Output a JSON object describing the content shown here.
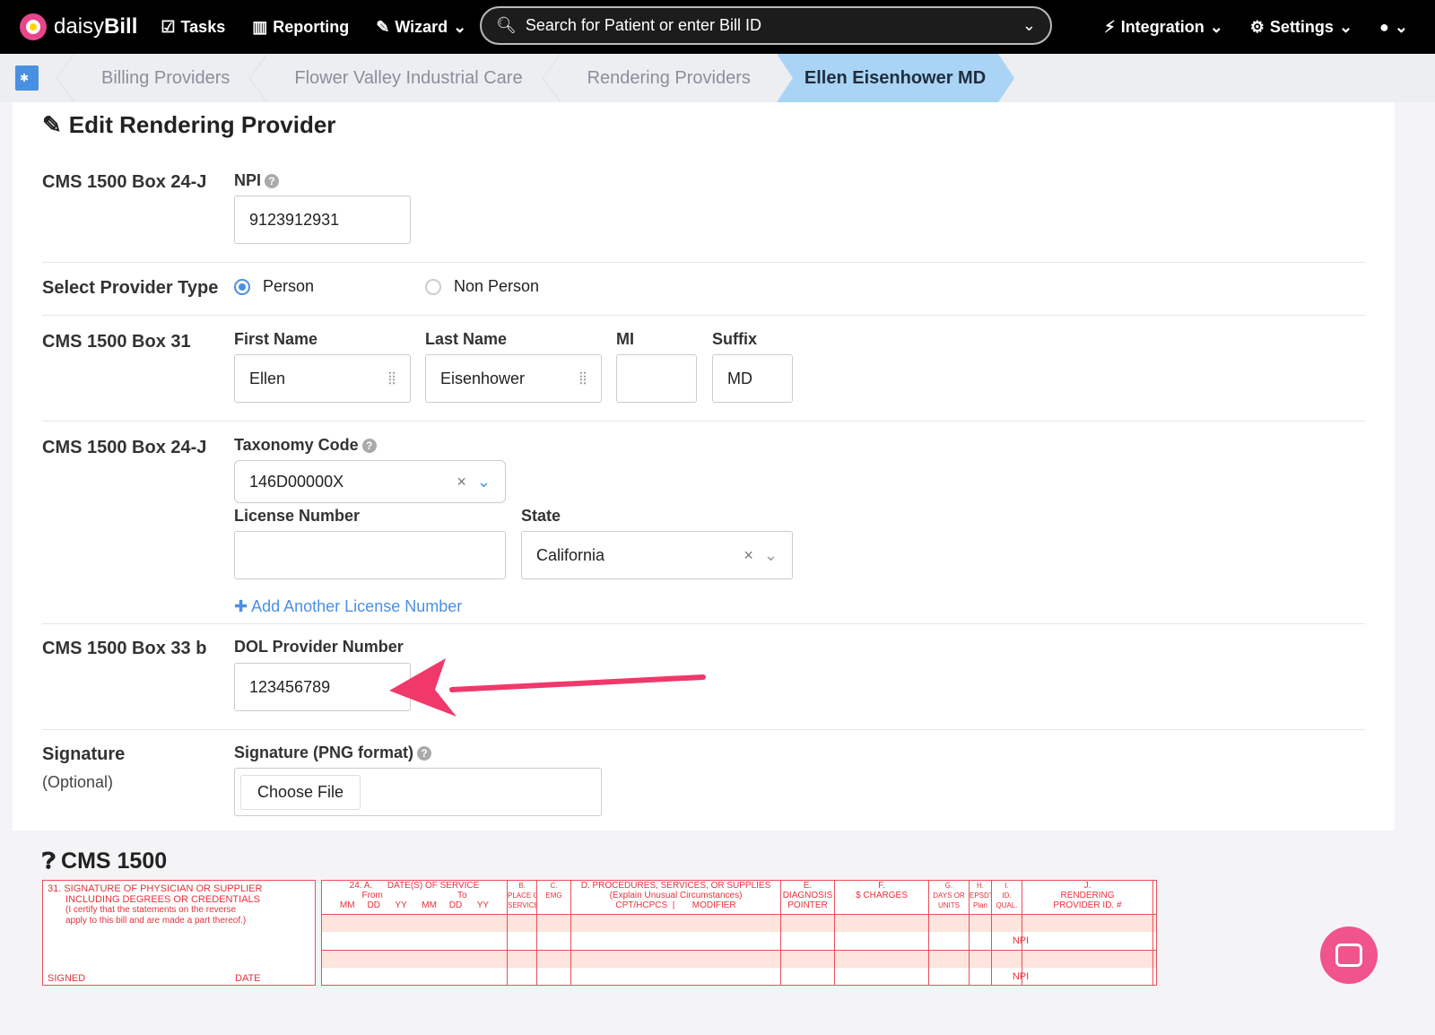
{
  "nav": {
    "brand_light": "daisy",
    "brand_bold": "Bill",
    "tasks": "Tasks",
    "reporting": "Reporting",
    "wizard": "Wizard",
    "search_placeholder": "Search for Patient or enter Bill ID",
    "integration": "Integration",
    "settings": "Settings"
  },
  "breadcrumb": [
    "Billing Providers",
    "Flower Valley Industrial Care",
    "Rendering Providers",
    "Ellen Eisenhower MD"
  ],
  "form": {
    "title": "Edit Rendering Provider",
    "npi_section": "CMS 1500 Box 24-J",
    "npi_label": "NPI",
    "npi_value": "9123912931",
    "provider_type_label": "Select Provider Type",
    "type_person": "Person",
    "type_non_person": "Non Person",
    "selected_type": "Person",
    "box31": "CMS 1500 Box 31",
    "first_name_label": "First Name",
    "first_name": "Ellen",
    "last_name_label": "Last Name",
    "last_name": "Eisenhower",
    "mi_label": "MI",
    "mi": "",
    "suffix_label": "Suffix",
    "suffix": "MD",
    "taxonomy_section": "CMS 1500 Box 24-J",
    "taxonomy_label": "Taxonomy Code",
    "taxonomy": "146D00000X",
    "license_label": "License Number",
    "license": "",
    "state_label": "State",
    "state": "California",
    "add_license": "Add Another License Number",
    "box33": "CMS 1500 Box 33 b",
    "dol_label": "DOL Provider Number",
    "dol": "123456789",
    "signature_section": "Signature",
    "signature_optional": "(Optional)",
    "signature_label": "Signature (PNG format)",
    "choose_file": "Choose File"
  },
  "cms": {
    "title": "CMS 1500",
    "box31_lines": [
      "31. SIGNATURE OF PHYSICIAN OR SUPPLIER",
      "INCLUDING DEGREES OR CREDENTIALS",
      "(I certify that the statements on the reverse",
      "apply to this bill and are made a part thereof.)"
    ],
    "signed": "SIGNED",
    "date": "DATE",
    "headers": [
      {
        "l1": "24. A.      DATE(S) OF SERVICE",
        "l2": "From                              To",
        "l3": "MM     DD      YY      MM     DD      YY"
      },
      {
        "l1": "B.",
        "l2": "PLACE OF",
        "l3": "SERVICE"
      },
      {
        "l1": "C.",
        "l2": "",
        "l3": "EMG"
      },
      {
        "l1": "D. PROCEDURES, SERVICES, OR SUPPLIES",
        "l2": "(Explain Unusual Circumstances)",
        "l3": "CPT/HCPCS  |       MODIFIER"
      },
      {
        "l1": "E.",
        "l2": "DIAGNOSIS",
        "l3": "POINTER"
      },
      {
        "l1": "F.",
        "l2": "",
        "l3": "$ CHARGES"
      },
      {
        "l1": "G.",
        "l2": "DAYS OR",
        "l3": "UNITS"
      },
      {
        "l1": "H.",
        "l2": "EPSDT Family",
        "l3": "Plan"
      },
      {
        "l1": "I.",
        "l2": "ID.",
        "l3": "QUAL."
      },
      {
        "l1": "J.",
        "l2": "RENDERING",
        "l3": "PROVIDER ID. #"
      }
    ],
    "npi": "NPI"
  },
  "colors": {
    "accent": "#4a90e2",
    "breadcrumb_active": "#a9d4f5",
    "form_red": "#e8303c",
    "arrow": "#f0386b"
  }
}
